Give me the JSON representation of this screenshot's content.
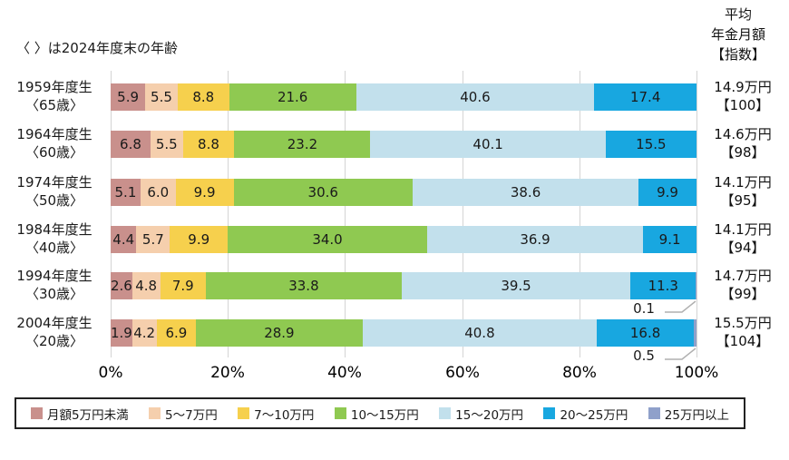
{
  "note": "〈 〉は2024年度末の年齢",
  "avg_header": {
    "line1": "平均",
    "line2": "年金月額",
    "line3": "【指数】"
  },
  "axis": {
    "ticks": [
      "0%",
      "20%",
      "40%",
      "60%",
      "80%",
      "100%"
    ]
  },
  "legend": [
    {
      "label": "月額5万円未満",
      "color": "#c9908c"
    },
    {
      "label": "5〜7万円",
      "color": "#f5cfad"
    },
    {
      "label": "7〜10万円",
      "color": "#f6d04d"
    },
    {
      "label": "10〜15万円",
      "color": "#8fc951"
    },
    {
      "label": "15〜20万円",
      "color": "#c2e0ec"
    },
    {
      "label": "20〜25万円",
      "color": "#18a7e0"
    },
    {
      "label": "25万円以上",
      "color": "#8fa0ca"
    }
  ],
  "rows": [
    {
      "label1": "1959年度生",
      "label2": "〈65歳〉",
      "values": [
        "5.9",
        "5.5",
        "8.8",
        "21.6",
        "40.6",
        "17.4",
        null
      ],
      "avg": "14.9万円",
      "index": "【100】",
      "callout": null
    },
    {
      "label1": "1964年度生",
      "label2": "〈60歳〉",
      "values": [
        "6.8",
        "5.5",
        "8.8",
        "23.2",
        "40.1",
        "15.5",
        null
      ],
      "avg": "14.6万円",
      "index": "【98】",
      "callout": null
    },
    {
      "label1": "1974年度生",
      "label2": "〈50歳〉",
      "values": [
        "5.1",
        "6.0",
        "9.9",
        "30.6",
        "38.6",
        "9.9",
        null
      ],
      "avg": "14.1万円",
      "index": "【95】",
      "callout": null
    },
    {
      "label1": "1984年度生",
      "label2": "〈40歳〉",
      "values": [
        "4.4",
        "5.7",
        "9.9",
        "34.0",
        "36.9",
        "9.1",
        null
      ],
      "avg": "14.1万円",
      "index": "【94】",
      "callout": null
    },
    {
      "label1": "1994年度生",
      "label2": "〈30歳〉",
      "values": [
        "2.6",
        "4.8",
        "7.9",
        "33.8",
        "39.5",
        "11.3",
        "0.1"
      ],
      "avg": "14.7万円",
      "index": "【99】",
      "callout": "0.1"
    },
    {
      "label1": "2004年度生",
      "label2": "〈20歳〉",
      "values": [
        "1.9",
        "4.2",
        "6.9",
        "28.9",
        "40.8",
        "16.8",
        "0.5"
      ],
      "avg": "15.5万円",
      "index": "【104】",
      "callout": "0.5"
    }
  ],
  "chart_data": {
    "type": "bar",
    "variant": "horizontal-stacked",
    "title": "",
    "note": "〈 〉は2024年度末の年齢",
    "categories": [
      "1959年度生〈65歳〉",
      "1964年度生〈60歳〉",
      "1974年度生〈50歳〉",
      "1984年度生〈40歳〉",
      "1994年度生〈30歳〉",
      "2004年度生〈20歳〉"
    ],
    "series": [
      {
        "name": "月額5万円未満",
        "color": "#c9908c",
        "values": [
          5.9,
          6.8,
          5.1,
          4.4,
          2.6,
          1.9
        ]
      },
      {
        "name": "5〜7万円",
        "color": "#f5cfad",
        "values": [
          5.5,
          5.5,
          6.0,
          5.7,
          4.8,
          4.2
        ]
      },
      {
        "name": "7〜10万円",
        "color": "#f6d04d",
        "values": [
          8.8,
          8.8,
          9.9,
          9.9,
          7.9,
          6.9
        ]
      },
      {
        "name": "10〜15万円",
        "color": "#8fc951",
        "values": [
          21.6,
          23.2,
          30.6,
          34.0,
          33.8,
          28.9
        ]
      },
      {
        "name": "15〜20万円",
        "color": "#c2e0ec",
        "values": [
          40.6,
          40.1,
          38.6,
          36.9,
          39.5,
          40.8
        ]
      },
      {
        "name": "20〜25万円",
        "color": "#18a7e0",
        "values": [
          17.4,
          15.5,
          9.9,
          9.1,
          11.3,
          16.8
        ]
      },
      {
        "name": "25万円以上",
        "color": "#8fa0ca",
        "values": [
          null,
          null,
          null,
          null,
          0.1,
          0.5
        ]
      }
    ],
    "annotations": [
      {
        "category": "1994年度生〈30歳〉",
        "series": "25万円以上",
        "label": "0.1"
      },
      {
        "category": "2004年度生〈20歳〉",
        "series": "25万円以上",
        "label": "0.5"
      }
    ],
    "right_column": {
      "header": "平均年金月額【指数】",
      "values": [
        "14.9万円【100】",
        "14.6万円【98】",
        "14.1万円【95】",
        "14.1万円【94】",
        "14.7万円【99】",
        "15.5万円【104】"
      ]
    },
    "xlabel": "",
    "ylabel": "",
    "xlim": [
      0,
      100
    ],
    "x_ticks": [
      "0%",
      "20%",
      "40%",
      "60%",
      "80%",
      "100%"
    ],
    "grid": true,
    "legend_position": "bottom"
  }
}
